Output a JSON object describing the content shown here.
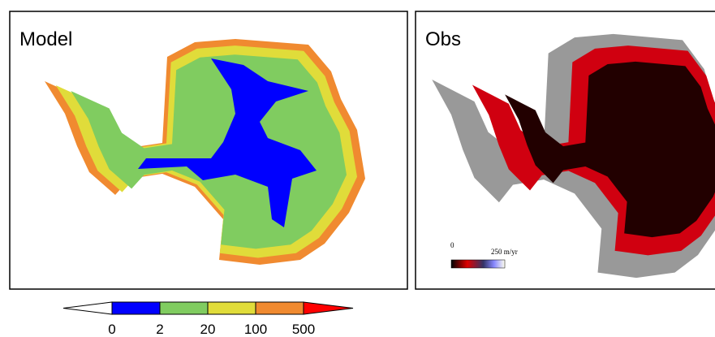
{
  "panels": [
    {
      "title": "Model"
    },
    {
      "title": "Obs",
      "scale": {
        "min_label": "0",
        "max_label": "250 m/yr"
      }
    }
  ],
  "colorbar": {
    "ticks": [
      0,
      2,
      20,
      100,
      500
    ],
    "colors": [
      "#ffffff",
      "#0000ff",
      "#80cc60",
      "#e0dc3a",
      "#f08a30",
      "#ff0000"
    ]
  }
}
